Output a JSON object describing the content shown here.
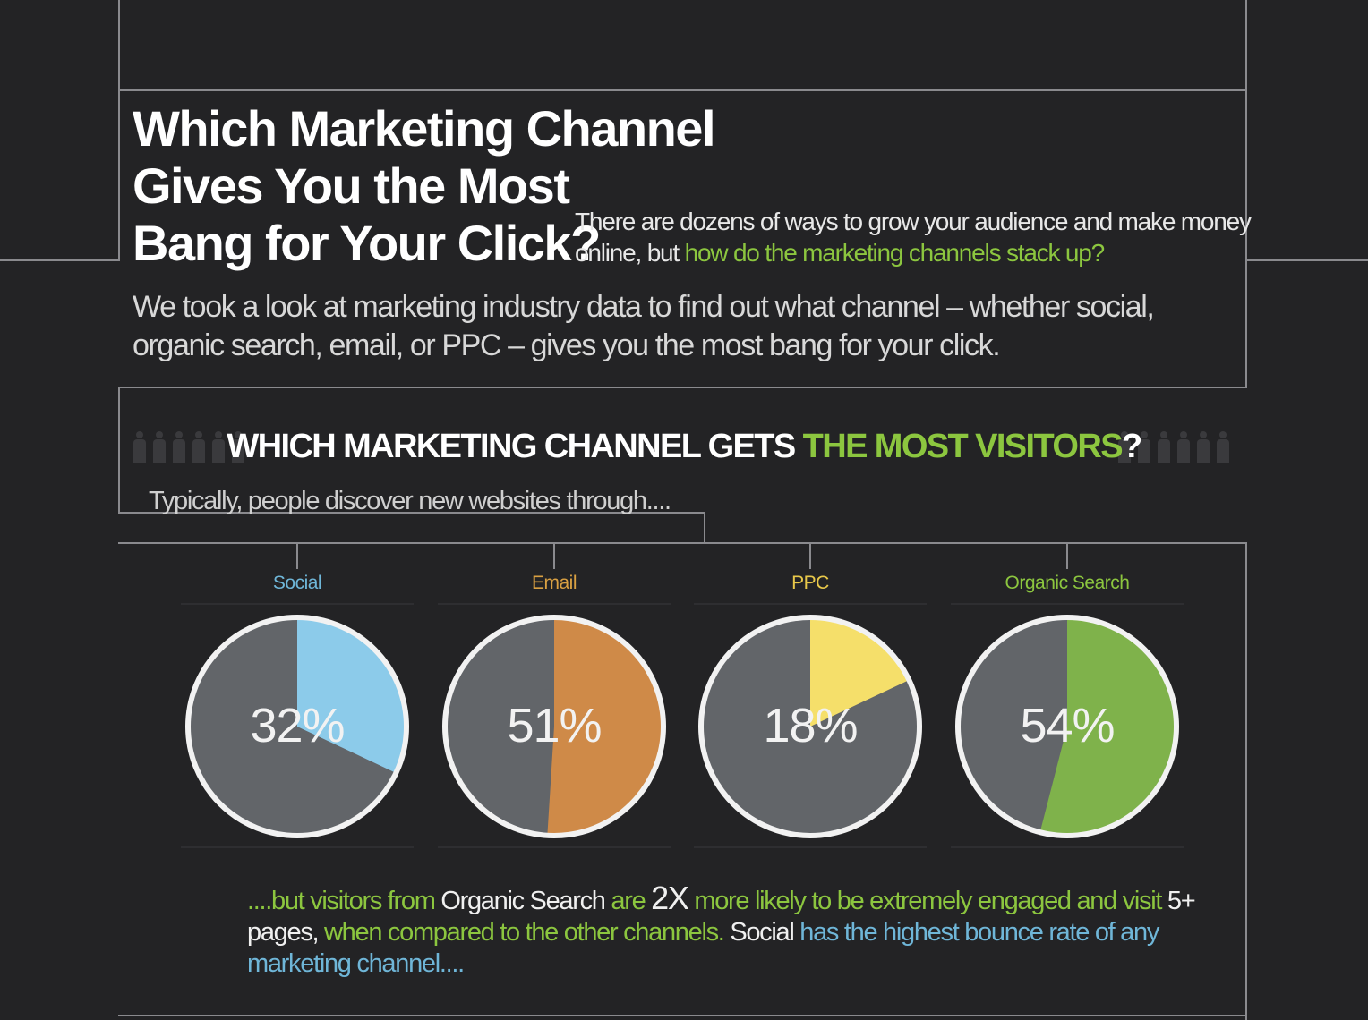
{
  "header": {
    "title_lines": [
      "Which Marketing Channel",
      "Gives You the Most",
      "Bang for Your Click?"
    ],
    "intro_side_plain": "There are dozens of ways to grow your audience and make money online, but ",
    "intro_side_highlight": "how do the marketing channels stack up?",
    "intro_main": "We took a look at marketing industry data to find out what channel – whether social, organic search, email, or PPC – gives  you the most bang for your click."
  },
  "section": {
    "title_plain": "WHICH MARKETING CHANNEL GETS ",
    "title_highlight": "THE MOST VISITORS",
    "title_end": "?",
    "subtitle": "Typically, people discover new websites through...."
  },
  "chart_data": {
    "type": "pie",
    "series": [
      {
        "name": "Social",
        "value": 32,
        "label": "32%",
        "color": "#8ccbea"
      },
      {
        "name": "Email",
        "value": 51,
        "label": "51%",
        "color": "#cf8a48"
      },
      {
        "name": "PPC",
        "value": 18,
        "label": "18%",
        "color": "#f5df6a"
      },
      {
        "name": "Organic Search",
        "value": 54,
        "label": "54%",
        "color": "#7fb24b"
      }
    ],
    "remainder_color": "#626569",
    "label_colors": [
      "#6fb6d8",
      "#d9a042",
      "#e8c84a",
      "#8cc63f"
    ]
  },
  "footer": {
    "p1": "....but visitors from ",
    "p2": "Organic Search",
    "p3": " are ",
    "p4": "2X",
    "p5": " more likely to be extremely engaged and visit ",
    "p6": "5+ pages,",
    "p7": " when compared to the other channels. ",
    "p8": "Social",
    "p9": " has the highest bounce rate of any marketing channel...."
  }
}
